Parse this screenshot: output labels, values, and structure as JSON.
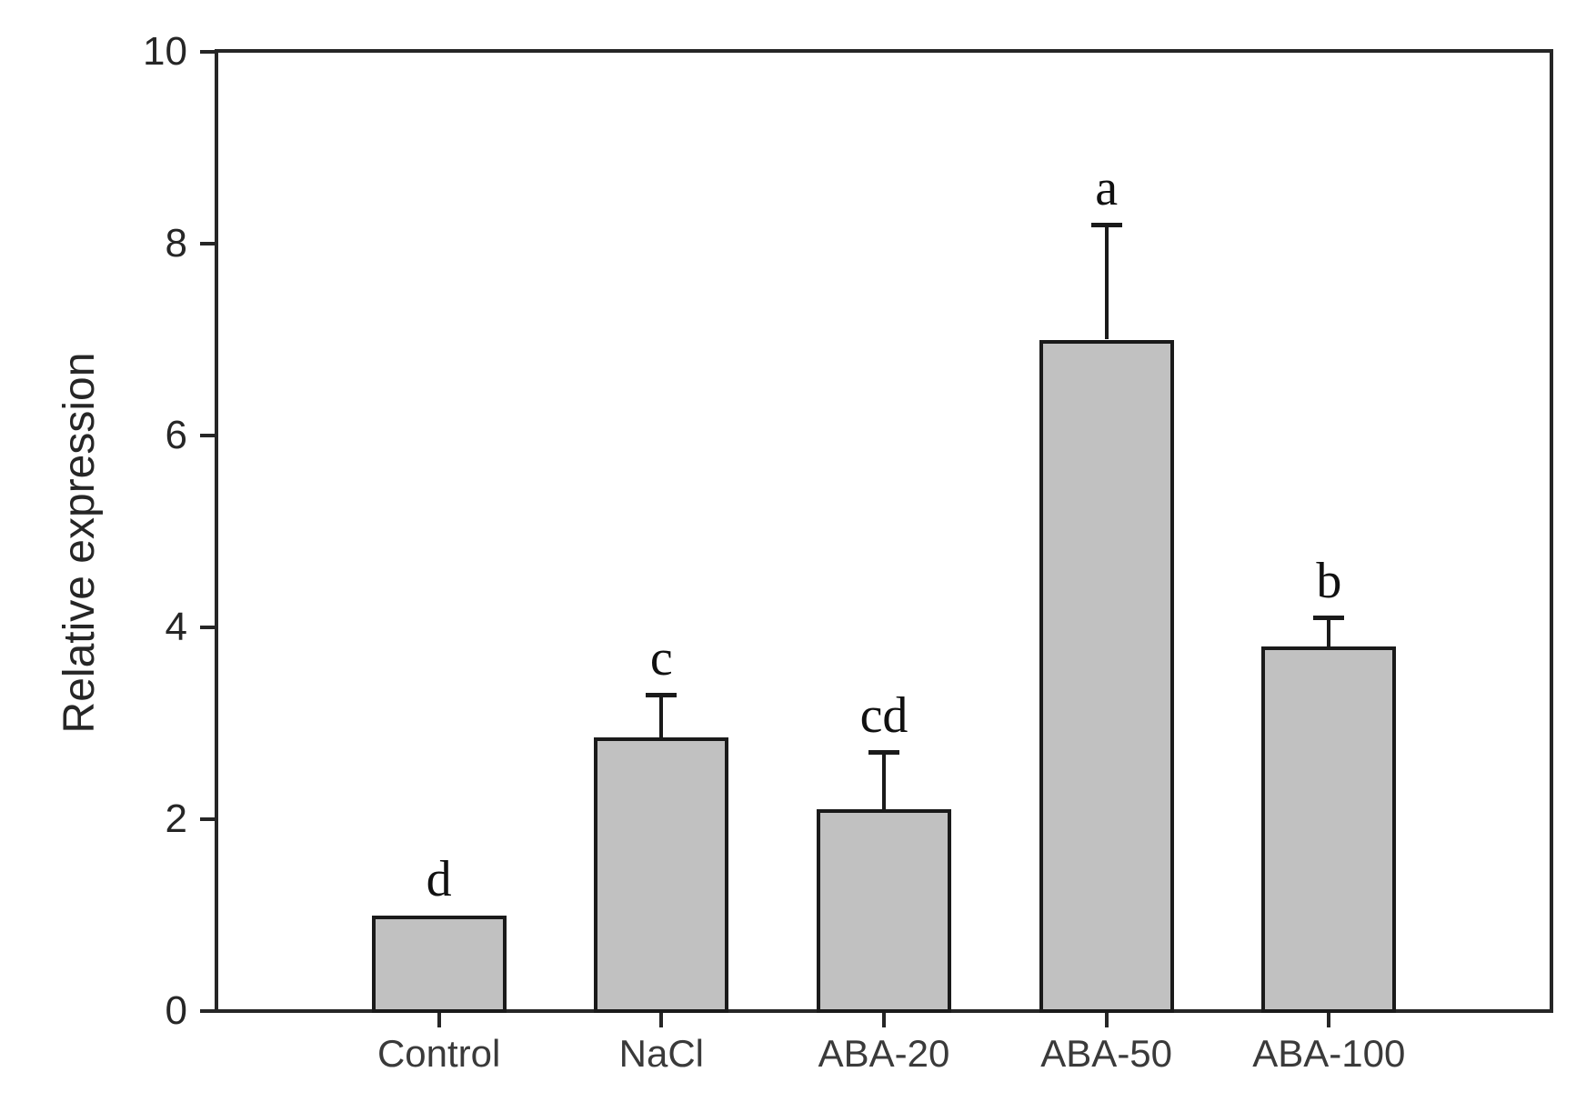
{
  "figure": {
    "background": "#ffffff",
    "axis_color": "#262626",
    "ylabel": "Relative expression"
  },
  "chart_data": {
    "type": "bar",
    "title": "",
    "xlabel": "",
    "ylabel": "Relative expression",
    "categories": [
      "Control",
      "NaCl",
      "ABA-20",
      "ABA-50",
      "ABA-100"
    ],
    "values": [
      1.0,
      2.85,
      2.1,
      7.0,
      3.8
    ],
    "errors_plus": [
      0,
      0.45,
      0.6,
      1.2,
      0.3
    ],
    "sig_letters": [
      "d",
      "c",
      "cd",
      "a",
      "b"
    ],
    "ylim": [
      0,
      10
    ],
    "yticks": [
      0,
      2,
      4,
      6,
      8,
      10
    ],
    "grid": false,
    "legend_position": "none",
    "bar_fill": "#c1c1c1",
    "bar_border": "#1a1a1a"
  }
}
